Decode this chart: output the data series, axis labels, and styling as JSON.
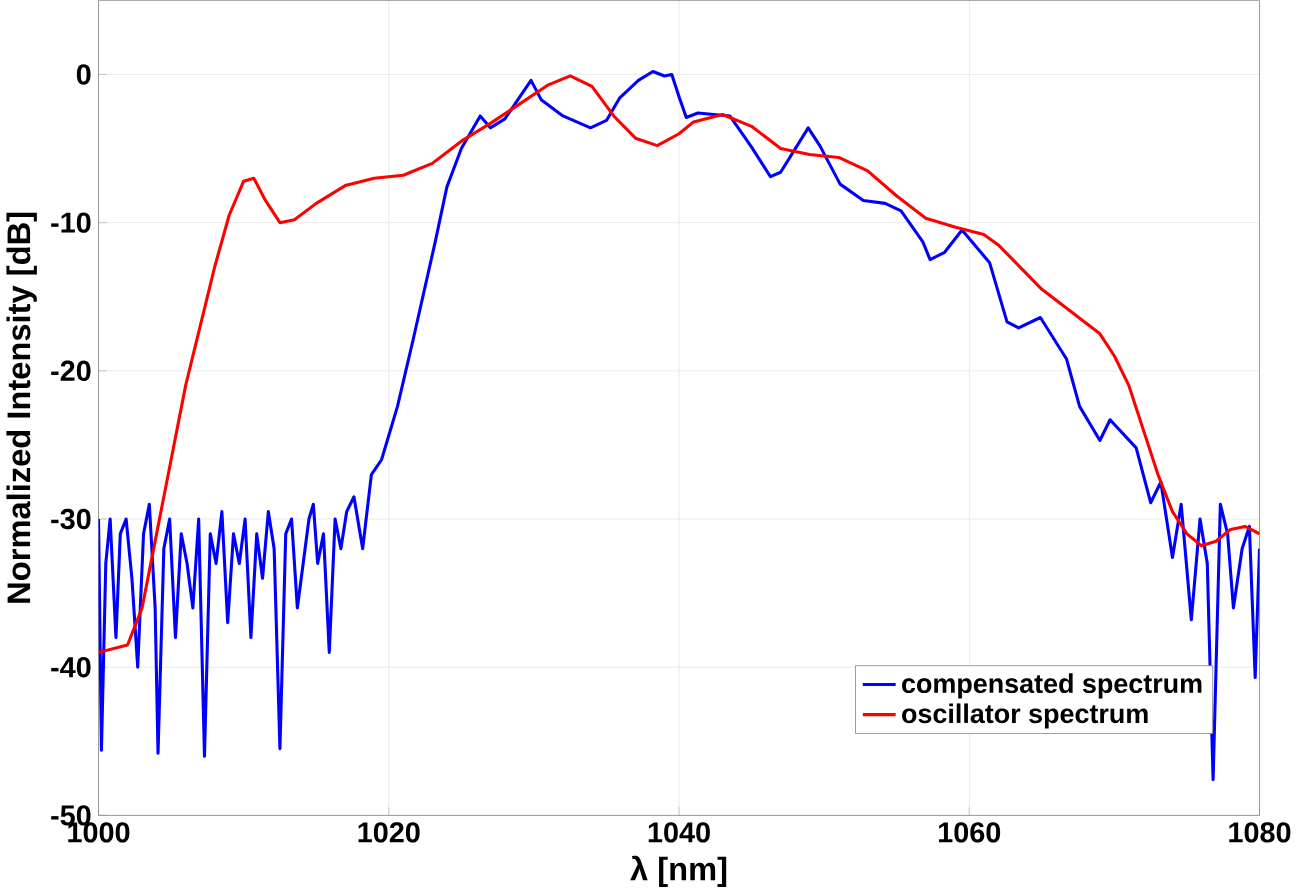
{
  "chart_data": {
    "type": "line",
    "xlabel": "λ [nm]",
    "ylabel": "Normalized Intensity [dB]",
    "xlim": [
      1000,
      1080
    ],
    "ylim": [
      -50,
      5
    ],
    "xticks": [
      1000,
      1020,
      1040,
      1060,
      1080
    ],
    "yticks": [
      -50,
      -40,
      -30,
      -20,
      -10,
      0
    ],
    "grid": true,
    "legend": "bottom right",
    "series": [
      {
        "name": "compensated spectrum",
        "color": "#0000ff",
        "x": [
          1000,
          1000.2,
          1000.5,
          1000.8,
          1001.2,
          1001.5,
          1001.9,
          1002.3,
          1002.7,
          1003.1,
          1003.5,
          1003.9,
          1004.1,
          1004.5,
          1004.9,
          1005.3,
          1005.7,
          1006.1,
          1006.5,
          1006.9,
          1007.3,
          1007.7,
          1008.1,
          1008.5,
          1008.9,
          1009.3,
          1009.7,
          1010.1,
          1010.5,
          1010.9,
          1011.3,
          1011.7,
          1012.1,
          1012.5,
          1012.9,
          1013.3,
          1013.7,
          1014.1,
          1014.5,
          1014.8,
          1015.1,
          1015.5,
          1015.9,
          1016.3,
          1016.7,
          1017.1,
          1017.6,
          1018.2,
          1018.8,
          1019.5,
          1020.6,
          1021.7,
          1023.2,
          1024,
          1025,
          1026.3,
          1027,
          1028,
          1029.8,
          1030.5,
          1032,
          1033.9,
          1035,
          1035.9,
          1037.2,
          1038.2,
          1039,
          1039.5,
          1040,
          1040.5,
          1041.3,
          1043.5,
          1045,
          1046.3,
          1047,
          1048.9,
          1049.7,
          1051.1,
          1052.7,
          1054.2,
          1055.3,
          1056.8,
          1057.3,
          1058.3,
          1059.5,
          1061.4,
          1062.6,
          1063.4,
          1064.9,
          1066.7,
          1067.6,
          1069,
          1069.7,
          1071.5,
          1072.5,
          1073.2,
          1074,
          1074.6,
          1075.3,
          1075.9,
          1076.4,
          1076.8,
          1077.3,
          1077.8,
          1078.2,
          1078.8,
          1079.3,
          1079.7,
          1080
        ],
        "values": [
          -30,
          -45.6,
          -33,
          -30,
          -38,
          -31,
          -30,
          -34,
          -40,
          -31,
          -29,
          -36,
          -45.8,
          -32,
          -30,
          -38,
          -31,
          -33,
          -36,
          -30,
          -46,
          -31,
          -33,
          -29.5,
          -37,
          -31,
          -33,
          -30,
          -38,
          -31,
          -34,
          -29.5,
          -32,
          -45.5,
          -31,
          -30,
          -36,
          -33,
          -30,
          -29,
          -33,
          -31,
          -39,
          -30,
          -32,
          -29.5,
          -28.5,
          -32,
          -27,
          -26,
          -22.4,
          -17.8,
          -11.3,
          -7.6,
          -5,
          -2.8,
          -3.6,
          -3,
          -0.4,
          -1.7,
          -2.8,
          -3.6,
          -3.1,
          -1.6,
          -0.4,
          0.2,
          -0.1,
          0,
          -1.5,
          -2.9,
          -2.6,
          -2.8,
          -4.9,
          -6.9,
          -6.6,
          -3.6,
          -4.8,
          -7.4,
          -8.5,
          -8.7,
          -9.2,
          -11.3,
          -12.5,
          -12,
          -10.5,
          -12.7,
          -16.7,
          -17.1,
          -16.4,
          -19.2,
          -22.4,
          -24.7,
          -23.3,
          -25.2,
          -28.9,
          -27.5,
          -32.6,
          -29,
          -36.8,
          -30,
          -33,
          -47.6,
          -29,
          -31,
          -36,
          -32,
          -30.5,
          -40.7,
          -32
        ]
      },
      {
        "name": "oscillator spectrum",
        "color": "#ff0000",
        "x": [
          1000,
          1002,
          1003,
          1004,
          1005,
          1006,
          1007,
          1008,
          1009,
          1010,
          1010.7,
          1011.5,
          1012.5,
          1013.5,
          1015,
          1017,
          1019,
          1021,
          1023,
          1025,
          1027,
          1029,
          1031,
          1032.5,
          1034,
          1035.5,
          1037,
          1038.5,
          1040,
          1041,
          1043,
          1045,
          1047,
          1049,
          1051,
          1053,
          1055,
          1057,
          1059,
          1061,
          1062,
          1063,
          1065,
          1067,
          1069,
          1070,
          1071,
          1072,
          1073,
          1074,
          1075,
          1076,
          1077,
          1078,
          1079,
          1080
        ],
        "values": [
          -39,
          -38.5,
          -36,
          -31,
          -26,
          -21,
          -17,
          -13,
          -9.5,
          -7.2,
          -7,
          -8.5,
          -10,
          -9.8,
          -8.7,
          -7.5,
          -7,
          -6.8,
          -6,
          -4.5,
          -3.3,
          -2,
          -0.7,
          -0.1,
          -0.8,
          -2.8,
          -4.3,
          -4.8,
          -4,
          -3.2,
          -2.7,
          -3.5,
          -5,
          -5.4,
          -5.6,
          -6.5,
          -8.2,
          -9.7,
          -10.3,
          -10.8,
          -11.5,
          -12.5,
          -14.5,
          -16,
          -17.5,
          -19,
          -21,
          -24,
          -27,
          -29.5,
          -31,
          -31.8,
          -31.5,
          -30.7,
          -30.5,
          -31
        ]
      }
    ]
  }
}
